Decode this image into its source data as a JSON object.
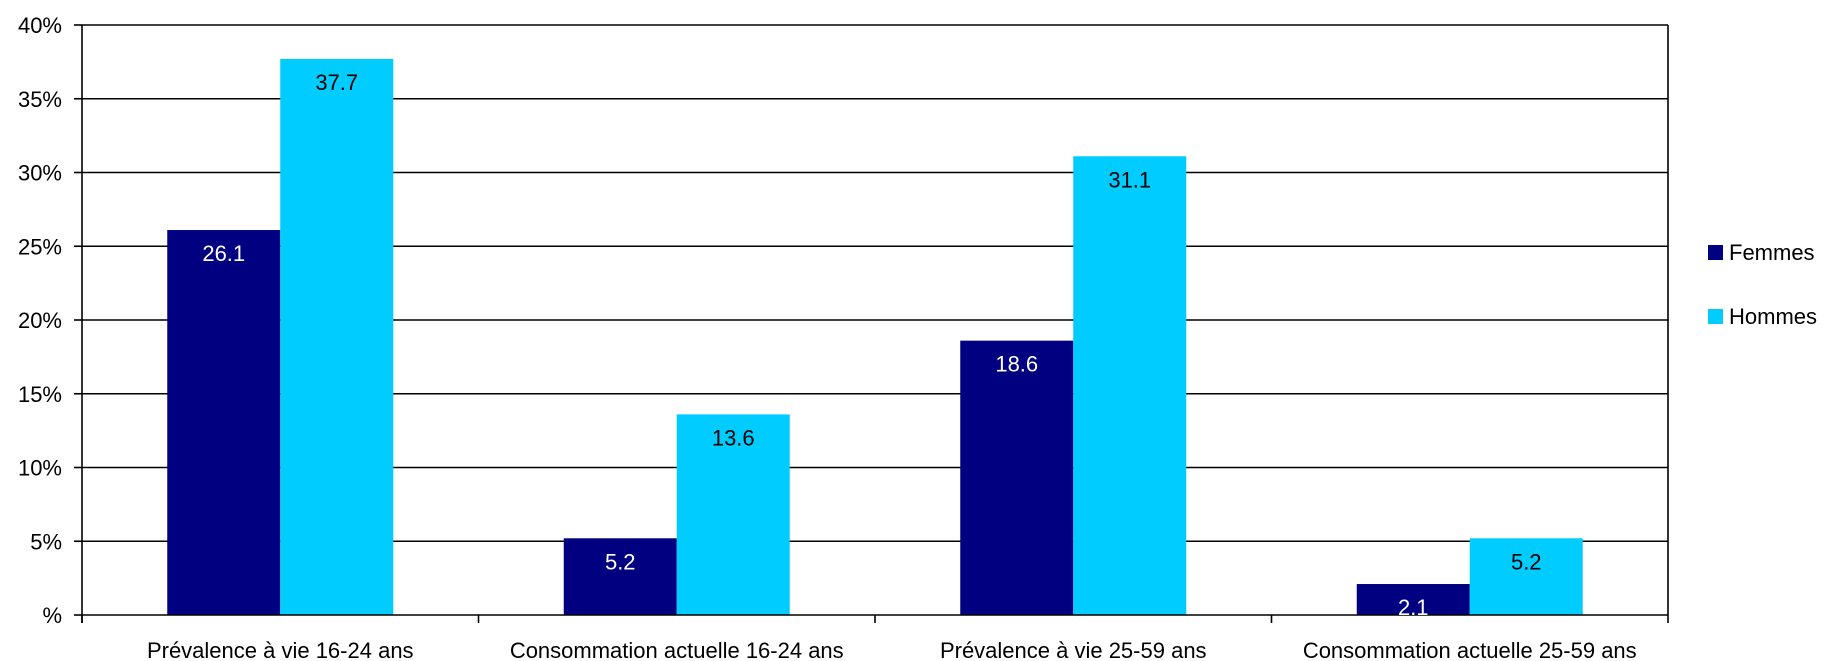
{
  "chart_data": {
    "type": "bar",
    "categories": [
      "Prévalence à vie 16-24 ans",
      "Consommation actuelle 16-24 ans",
      "Prévalence à vie 25-59 ans",
      "Consommation actuelle 25-59 ans"
    ],
    "series": [
      {
        "name": "Femmes",
        "color": "#000080",
        "label_color": "#ffffff",
        "values": [
          26.1,
          5.2,
          18.6,
          2.1
        ]
      },
      {
        "name": "Hommes",
        "color": "#00ccff",
        "label_color": "#000000",
        "values": [
          37.7,
          13.6,
          31.1,
          5.2
        ]
      }
    ],
    "y_ticks": [
      0,
      5,
      10,
      15,
      20,
      25,
      30,
      35,
      40
    ],
    "y_tick_labels": [
      "%",
      "5%",
      "10%",
      "15%",
      "20%",
      "25%",
      "30%",
      "35%",
      "40%"
    ],
    "ylim": [
      0,
      40
    ],
    "grid": true,
    "legend_position": "right",
    "title": "",
    "xlabel": "",
    "ylabel": ""
  }
}
